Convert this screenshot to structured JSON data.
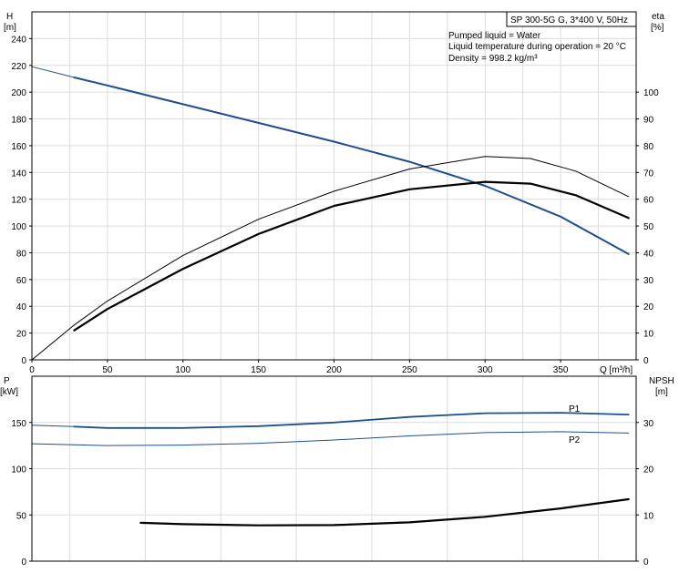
{
  "chart_data": [
    {
      "type": "line",
      "panel": "top",
      "title": "SP 300-5G G, 3*400 V, 50Hz",
      "info_lines": [
        "Pumped liquid = Water",
        "Liquid temperature during operation = 20 °C",
        "Density = 998.2 kg/m³"
      ],
      "x_axis": {
        "label": "Q [m³/h]",
        "range": [
          0,
          400
        ],
        "ticks": [
          0,
          50,
          100,
          150,
          200,
          250,
          300,
          350
        ]
      },
      "y_left": {
        "label_lines": [
          "H",
          "[m]"
        ],
        "range": [
          0,
          260
        ],
        "ticks": [
          0,
          20,
          40,
          60,
          80,
          100,
          120,
          140,
          160,
          180,
          200,
          220,
          240
        ]
      },
      "y_right": {
        "label_lines": [
          "eta",
          "[%]"
        ],
        "range": [
          0,
          130
        ],
        "ticks": [
          0,
          10,
          20,
          30,
          40,
          50,
          60,
          70,
          80,
          90,
          100
        ]
      },
      "grid": true,
      "series": [
        {
          "axis": "left",
          "color": "#1f4e8c",
          "width": 1,
          "points": [
            [
              0,
              219
            ],
            [
              28,
              211
            ]
          ]
        },
        {
          "axis": "left",
          "color": "#1f4e8c",
          "width": 2,
          "points": [
            [
              28,
              211
            ],
            [
              50,
              205
            ],
            [
              100,
              191
            ],
            [
              150,
              177
            ],
            [
              200,
              163
            ],
            [
              250,
              148
            ],
            [
              300,
              130
            ],
            [
              350,
              107
            ],
            [
              395,
              79
            ]
          ]
        },
        {
          "axis": "right",
          "color": "#000000",
          "width": 1,
          "points": [
            [
              0,
              0
            ],
            [
              28,
              13
            ],
            [
              50,
              22
            ],
            [
              100,
              39
            ],
            [
              150,
              52.5
            ],
            [
              200,
              63
            ],
            [
              250,
              71.3
            ],
            [
              300,
              76
            ],
            [
              330,
              75.2
            ],
            [
              360,
              70.5
            ],
            [
              395,
              61
            ]
          ]
        },
        {
          "axis": "right",
          "color": "#000000",
          "width": 2.2,
          "points": [
            [
              28,
              11
            ],
            [
              50,
              19
            ],
            [
              100,
              34
            ],
            [
              150,
              47
            ],
            [
              200,
              57.5
            ],
            [
              250,
              63.7
            ],
            [
              300,
              66.5
            ],
            [
              330,
              65.8
            ],
            [
              360,
              61.5
            ],
            [
              395,
              53
            ]
          ]
        }
      ]
    },
    {
      "type": "line",
      "panel": "bottom",
      "y_left": {
        "label_lines": [
          "P",
          "[kW]"
        ],
        "range": [
          0,
          200
        ],
        "ticks": [
          0,
          50,
          100,
          150
        ]
      },
      "y_right": {
        "label_lines": [
          "NPSH",
          "[m]"
        ],
        "range": [
          0,
          40
        ],
        "ticks": [
          0,
          10,
          20,
          30
        ]
      },
      "grid": true,
      "series": [
        {
          "name": "P1",
          "axis": "left",
          "color": "#1f4e8c",
          "width": 1,
          "points": [
            [
              0,
              147
            ],
            [
              28,
              145.5
            ]
          ]
        },
        {
          "name": "P1",
          "axis": "left",
          "color": "#1f4e8c",
          "width": 1.8,
          "points": [
            [
              28,
              145.5
            ],
            [
              50,
              144
            ],
            [
              100,
              144
            ],
            [
              150,
              146
            ],
            [
              200,
              150
            ],
            [
              250,
              156
            ],
            [
              300,
              160
            ],
            [
              350,
              160.5
            ],
            [
              395,
              158.5
            ]
          ]
        },
        {
          "name": "P2",
          "axis": "left",
          "color": "#1f4e8c",
          "width": 1,
          "points": [
            [
              0,
              127
            ],
            [
              50,
              125
            ],
            [
              100,
              125.5
            ],
            [
              150,
              127.5
            ],
            [
              200,
              131
            ],
            [
              250,
              135.5
            ],
            [
              300,
              139
            ],
            [
              350,
              140
            ],
            [
              395,
              138.5
            ]
          ]
        },
        {
          "axis": "right",
          "color": "#000000",
          "width": 2.2,
          "points": [
            [
              72,
              8.3
            ],
            [
              100,
              8.0
            ],
            [
              150,
              7.75
            ],
            [
              200,
              7.8
            ],
            [
              250,
              8.4
            ],
            [
              300,
              9.6
            ],
            [
              350,
              11.4
            ],
            [
              395,
              13.4
            ]
          ]
        }
      ]
    }
  ]
}
